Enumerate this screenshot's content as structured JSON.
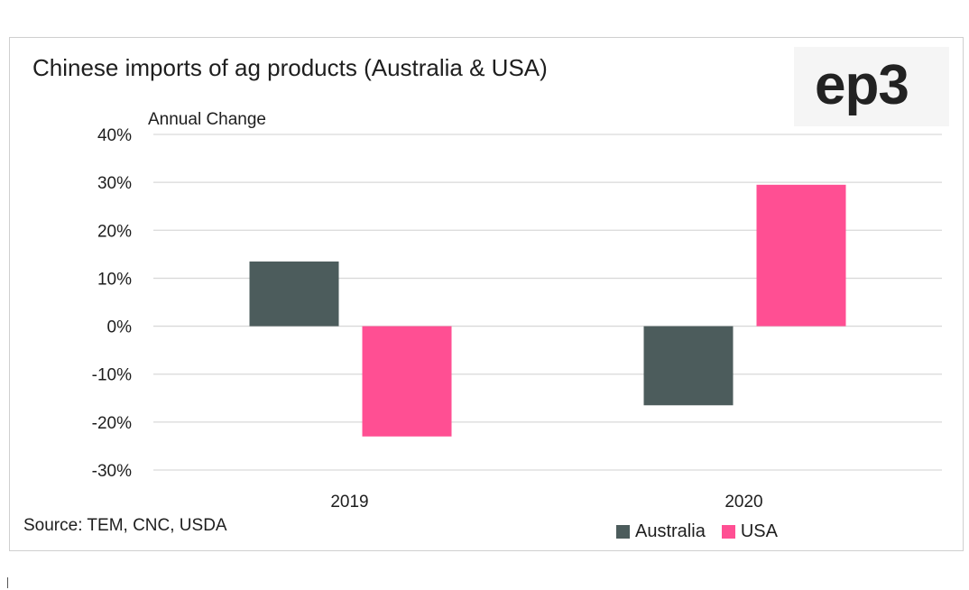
{
  "colors": {
    "australia": "#4c5c5c",
    "usa": "#ff4f93",
    "grid": "#d9d9d9",
    "text": "#1e1e1e"
  },
  "logo": {
    "text": "ep3"
  },
  "source": "Source: TEM, CNC, USDA",
  "chart_data": {
    "type": "bar",
    "title": "Chinese imports of ag products (Australia & USA)",
    "ylabel": "Annual Change",
    "xlabel": "",
    "categories": [
      "2019",
      "2020"
    ],
    "series": [
      {
        "name": "Australia",
        "values": [
          13.5,
          -16.5
        ]
      },
      {
        "name": "USA",
        "values": [
          -23,
          29.5
        ]
      }
    ],
    "ylim": [
      -30,
      40
    ],
    "yticks": [
      40,
      30,
      20,
      10,
      0,
      -10,
      -20,
      -30
    ],
    "ytick_labels": [
      "40%",
      "30%",
      "20%",
      "10%",
      "0%",
      "-10%",
      "-20%",
      "-30%"
    ],
    "grid": true,
    "legend_position": "bottom-right"
  }
}
